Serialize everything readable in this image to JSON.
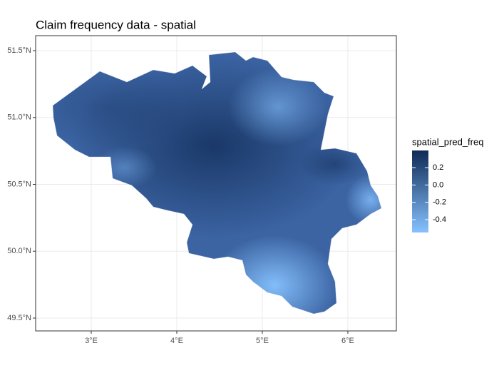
{
  "chart_data": {
    "type": "map",
    "title": "Claim frequency data - spatial",
    "xlim": [
      2.35,
      6.567
    ],
    "ylim": [
      49.404,
      51.612
    ],
    "xticks": [
      {
        "value": 3,
        "label": "3°E"
      },
      {
        "value": 4,
        "label": "4°E"
      },
      {
        "value": 5,
        "label": "5°E"
      },
      {
        "value": 6,
        "label": "6°E"
      }
    ],
    "yticks": [
      {
        "value": 49.5,
        "label": "49.5°N"
      },
      {
        "value": 50,
        "label": "50.0°N"
      },
      {
        "value": 50.5,
        "label": "50.5°N"
      },
      {
        "value": 51,
        "label": "51.0°N"
      },
      {
        "value": 51.5,
        "label": "51.5°N"
      }
    ],
    "grid": true,
    "legend": {
      "title": "spatial_pred_freq",
      "lim": [
        -0.548,
        0.398
      ],
      "ticks": [
        0.2,
        {
          "value": 0,
          "label": "0.0"
        },
        -0.2,
        -0.4
      ],
      "low_color": "#86c2ff",
      "high_color": "#0f2a55"
    }
  }
}
